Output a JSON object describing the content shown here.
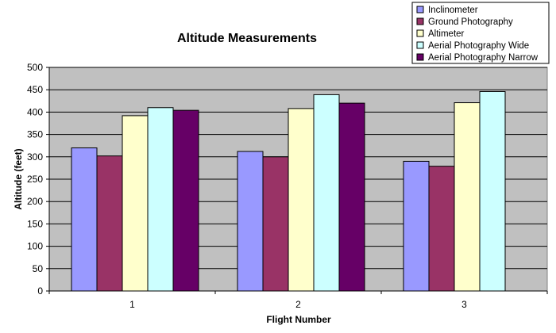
{
  "chart_data": {
    "type": "bar",
    "title": "Altitude Measurements",
    "xlabel": "Flight Number",
    "ylabel": "Altitude (feet)",
    "categories": [
      "1",
      "2",
      "3"
    ],
    "ylim": [
      0,
      500
    ],
    "yticks": [
      0,
      50,
      100,
      150,
      200,
      250,
      300,
      350,
      400,
      450,
      500
    ],
    "grid": true,
    "legend_position": "top-right",
    "plot_background": "#c0c0c0",
    "series": [
      {
        "name": "Inclinometer",
        "color": "#9999ff",
        "values": [
          320,
          312,
          290
        ]
      },
      {
        "name": "Ground Photography",
        "color": "#993366",
        "values": [
          302,
          300,
          279
        ]
      },
      {
        "name": "Altimeter",
        "color": "#ffffcc",
        "values": [
          392,
          408,
          421
        ]
      },
      {
        "name": "Aerial Photography Wide",
        "color": "#ccffff",
        "values": [
          410,
          439,
          446
        ]
      },
      {
        "name": "Aerial Photography Narrow",
        "color": "#660066",
        "values": [
          404,
          420,
          null
        ]
      }
    ]
  }
}
